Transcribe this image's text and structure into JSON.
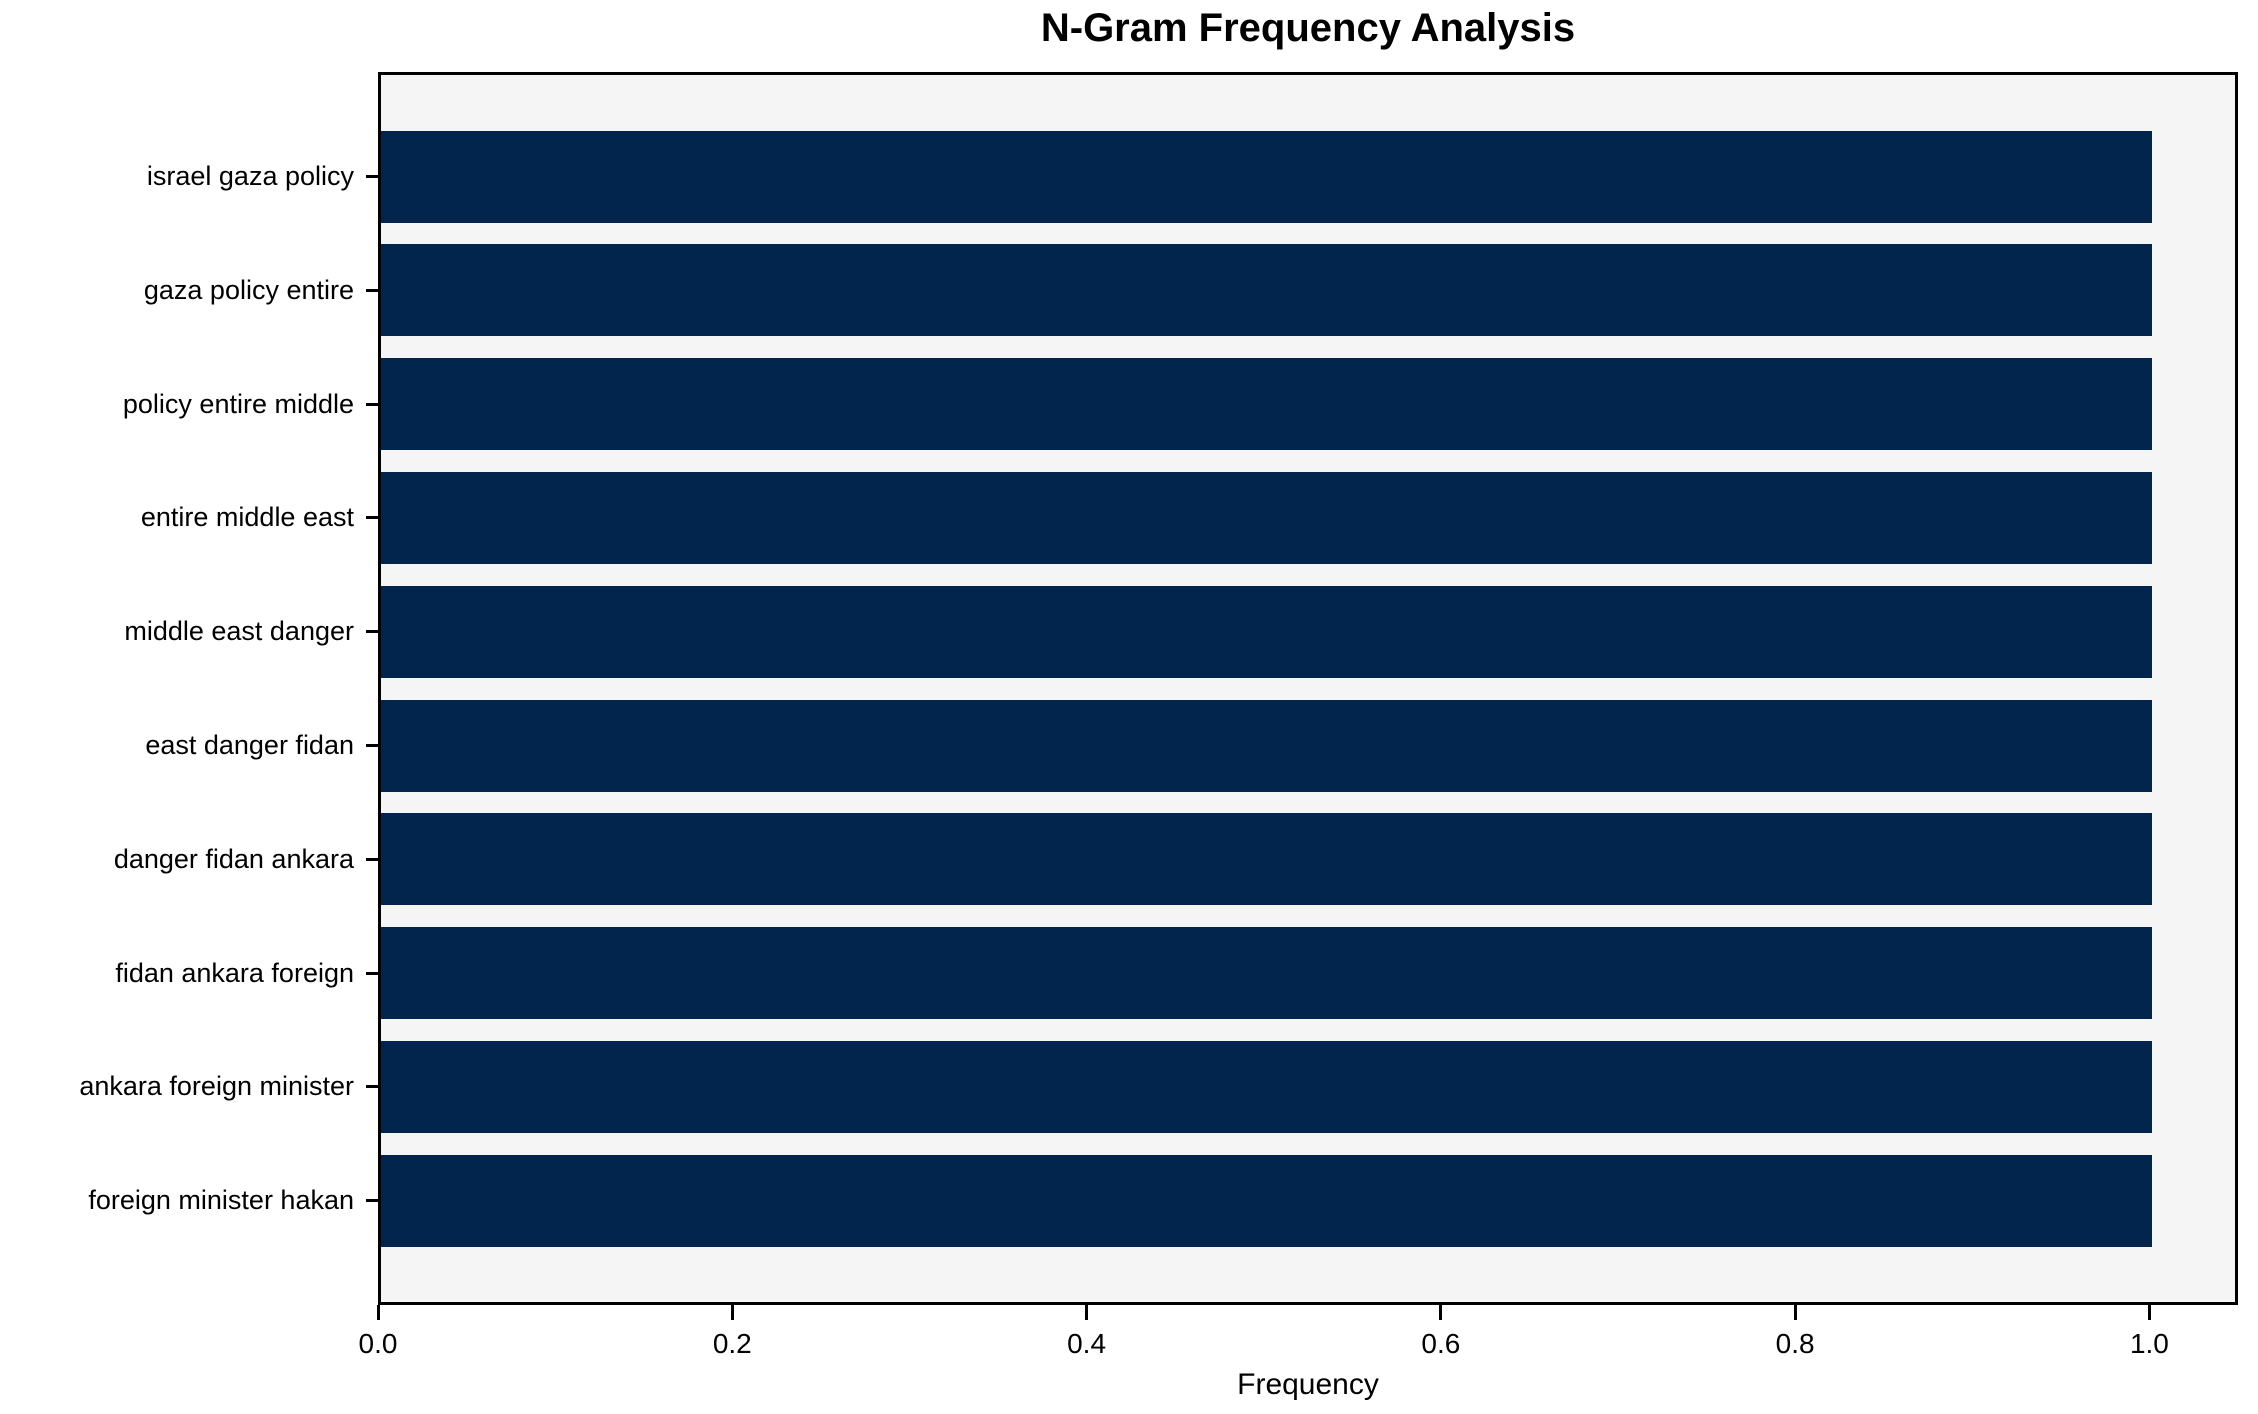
{
  "chart_data": {
    "type": "bar",
    "orientation": "horizontal",
    "title": "N-Gram Frequency Analysis",
    "xlabel": "Frequency",
    "ylabel": "",
    "categories": [
      "israel gaza policy",
      "gaza policy entire",
      "policy entire middle",
      "entire middle east",
      "middle east danger",
      "east danger fidan",
      "danger fidan ankara",
      "fidan ankara foreign",
      "ankara foreign minister",
      "foreign minister hakan"
    ],
    "values": [
      1.0,
      1.0,
      1.0,
      1.0,
      1.0,
      1.0,
      1.0,
      1.0,
      1.0,
      1.0
    ],
    "xlim": [
      0.0,
      1.05
    ],
    "xticks": [
      0.0,
      0.2,
      0.4,
      0.6,
      0.8,
      1.0
    ],
    "grid": false,
    "legend_position": "none",
    "colors": {
      "bar": "#02254d",
      "plot_background": "#f5f5f6",
      "figure_background": "#ffffff",
      "spine": "#000000",
      "text": "#000000"
    }
  }
}
